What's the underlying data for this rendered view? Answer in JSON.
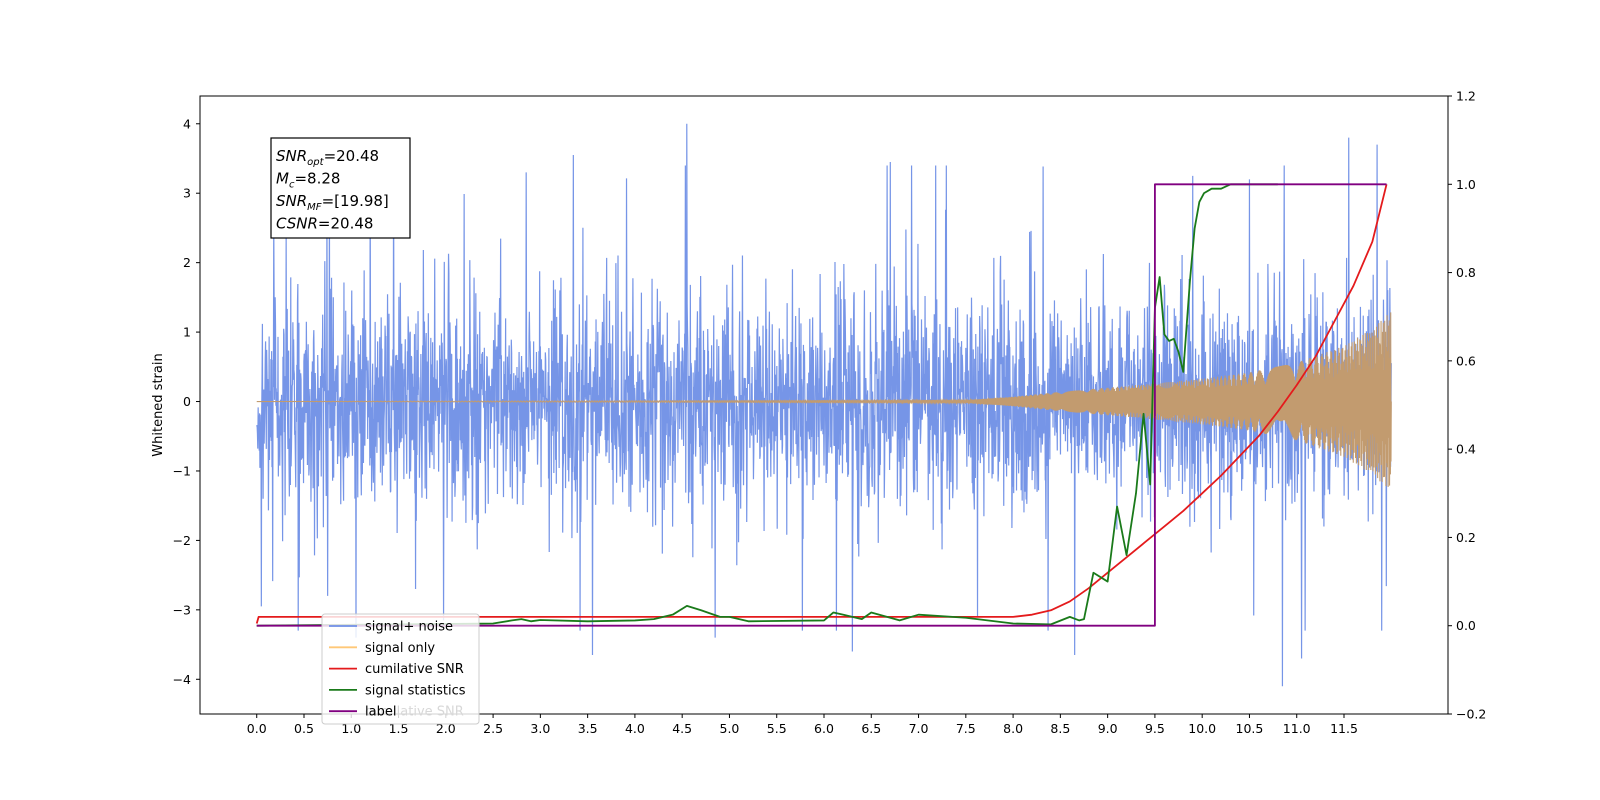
{
  "chart_data": {
    "type": "line",
    "ylabel": "Whitened strain",
    "xlim": [
      -0.6,
      12.6
    ],
    "ylim": [
      -4.5,
      4.4
    ],
    "y2lim": [
      -0.2,
      1.2
    ],
    "x_ticks": [
      0.0,
      0.5,
      1.0,
      1.5,
      2.0,
      2.5,
      3.0,
      3.5,
      4.0,
      4.5,
      5.0,
      5.5,
      6.0,
      6.5,
      7.0,
      7.5,
      8.0,
      8.5,
      9.0,
      9.5,
      10.0,
      10.5,
      11.0,
      11.5
    ],
    "x_tick_labels": [
      "0.0",
      "0.5",
      "1.0",
      "1.5",
      "2.0",
      "2.5",
      "3.0",
      "3.5",
      "4.0",
      "4.5",
      "5.0",
      "5.5",
      "6.0",
      "6.5",
      "7.0",
      "7.5",
      "8.0",
      "8.5",
      "9.0",
      "9.5",
      "10.0",
      "10.5",
      "11.0",
      "11.5"
    ],
    "y_ticks": [
      -4,
      -3,
      -2,
      -1,
      0,
      1,
      2,
      3,
      4
    ],
    "y_tick_labels": [
      "−4",
      "−3",
      "−2",
      "−1",
      "0",
      "1",
      "2",
      "3",
      "4"
    ],
    "y2_ticks": [
      -0.2,
      0.0,
      0.2,
      0.4,
      0.6,
      0.8,
      1.0,
      1.2
    ],
    "y2_tick_labels": [
      "−0.2",
      "0.0",
      "0.2",
      "0.4",
      "0.6",
      "0.8",
      "1.0",
      "1.2"
    ],
    "annotation": {
      "lines": [
        {
          "sym": "SNR",
          "sub": "opt",
          "val": "=20.48"
        },
        {
          "sym": "M",
          "sub": "c",
          "val": "=8.28"
        },
        {
          "sym": "SNR",
          "sub": "MF",
          "val": "=[19.98]"
        },
        {
          "sym": "CSNR",
          "sub": "",
          "val": "=20.48"
        }
      ]
    },
    "legend": {
      "placement": "lower-left",
      "entries": [
        "signal+ noise",
        "signal only",
        "cumilative SNR",
        "signal statistics",
        "label"
      ],
      "hidden_text": "cumilative SNR"
    },
    "series": [
      {
        "name": "signal+ noise",
        "axis": "left",
        "color": "#6f8fe6",
        "style": "noise",
        "x_range": [
          0.0,
          12.0
        ],
        "noise_band": [
          -1.9,
          1.9
        ],
        "peaks": [
          {
            "x": 4.55,
            "y": 4.0
          },
          {
            "x": 11.55,
            "y": 3.8
          },
          {
            "x": 11.85,
            "y": 3.7
          },
          {
            "x": 3.35,
            "y": 3.55
          },
          {
            "x": 9.9,
            "y": 3.25
          },
          {
            "x": 10.5,
            "y": 3.2
          },
          {
            "x": 1.2,
            "y": 3.35
          },
          {
            "x": 6.7,
            "y": 3.45
          },
          {
            "x": 2.85,
            "y": 3.3
          }
        ],
        "troughs": [
          {
            "x": 10.85,
            "y": -4.1
          },
          {
            "x": 11.05,
            "y": -3.7
          },
          {
            "x": 8.65,
            "y": -3.65
          },
          {
            "x": 3.55,
            "y": -3.65
          },
          {
            "x": 6.3,
            "y": -3.6
          },
          {
            "x": 1.05,
            "y": -3.4
          },
          {
            "x": 4.85,
            "y": -3.4
          },
          {
            "x": 11.9,
            "y": -3.3
          },
          {
            "x": 0.05,
            "y": -2.95
          }
        ]
      },
      {
        "name": "signal only",
        "axis": "left",
        "color": "#c29b6f",
        "style": "chirp",
        "x": [
          0.0,
          7.5,
          8.0,
          8.5,
          9.0,
          9.5,
          10.0,
          10.5,
          11.0,
          11.5,
          11.8,
          12.0
        ],
        "envelope": [
          0.0,
          0.02,
          0.07,
          0.14,
          0.2,
          0.26,
          0.33,
          0.42,
          0.56,
          0.8,
          1.05,
          1.3
        ]
      },
      {
        "name": "cumilative SNR",
        "axis": "right",
        "color": "#e41a1c",
        "x": [
          0.0,
          0.02,
          7.5,
          8.0,
          8.2,
          8.4,
          8.6,
          8.8,
          9.0,
          9.2,
          9.4,
          9.6,
          9.8,
          10.0,
          10.2,
          10.4,
          10.6,
          10.8,
          11.0,
          11.2,
          11.4,
          11.6,
          11.8,
          11.95
        ],
        "values": [
          0.005,
          0.02,
          0.02,
          0.02,
          0.025,
          0.035,
          0.055,
          0.085,
          0.12,
          0.155,
          0.19,
          0.225,
          0.26,
          0.3,
          0.34,
          0.385,
          0.43,
          0.485,
          0.545,
          0.61,
          0.69,
          0.77,
          0.87,
          1.0
        ]
      },
      {
        "name": "signal statistics",
        "axis": "right",
        "color": "#1a7a1a",
        "x": [
          0.0,
          2.5,
          2.7,
          2.8,
          2.9,
          3.0,
          3.5,
          4.0,
          4.2,
          4.4,
          4.55,
          4.7,
          4.9,
          5.0,
          5.2,
          6.0,
          6.1,
          6.2,
          6.4,
          6.5,
          6.7,
          6.8,
          7.0,
          7.5,
          8.0,
          8.4,
          8.6,
          8.7,
          8.75,
          8.85,
          9.0,
          9.1,
          9.2,
          9.3,
          9.38,
          9.45,
          9.5,
          9.55,
          9.6,
          9.65,
          9.7,
          9.75,
          9.8,
          9.87,
          9.92,
          9.97,
          10.02,
          10.1,
          10.2,
          10.3,
          10.4,
          10.5,
          10.6,
          10.8
        ],
        "values": [
          0.0,
          0.005,
          0.012,
          0.015,
          0.01,
          0.013,
          0.01,
          0.012,
          0.015,
          0.025,
          0.045,
          0.035,
          0.02,
          0.02,
          0.01,
          0.012,
          0.03,
          0.025,
          0.015,
          0.03,
          0.018,
          0.012,
          0.025,
          0.018,
          0.005,
          0.003,
          0.02,
          0.012,
          0.015,
          0.12,
          0.1,
          0.27,
          0.16,
          0.3,
          0.48,
          0.32,
          0.72,
          0.79,
          0.66,
          0.645,
          0.65,
          0.62,
          0.575,
          0.78,
          0.9,
          0.96,
          0.98,
          0.99,
          0.99,
          1.0,
          1.0,
          1.0,
          1.0,
          1.0
        ]
      },
      {
        "name": "label",
        "axis": "right",
        "color": "#800080",
        "style": "step",
        "x": [
          0.0,
          9.5,
          9.5,
          11.95
        ],
        "values": [
          0.0,
          0.0,
          1.0,
          1.0
        ]
      }
    ]
  }
}
